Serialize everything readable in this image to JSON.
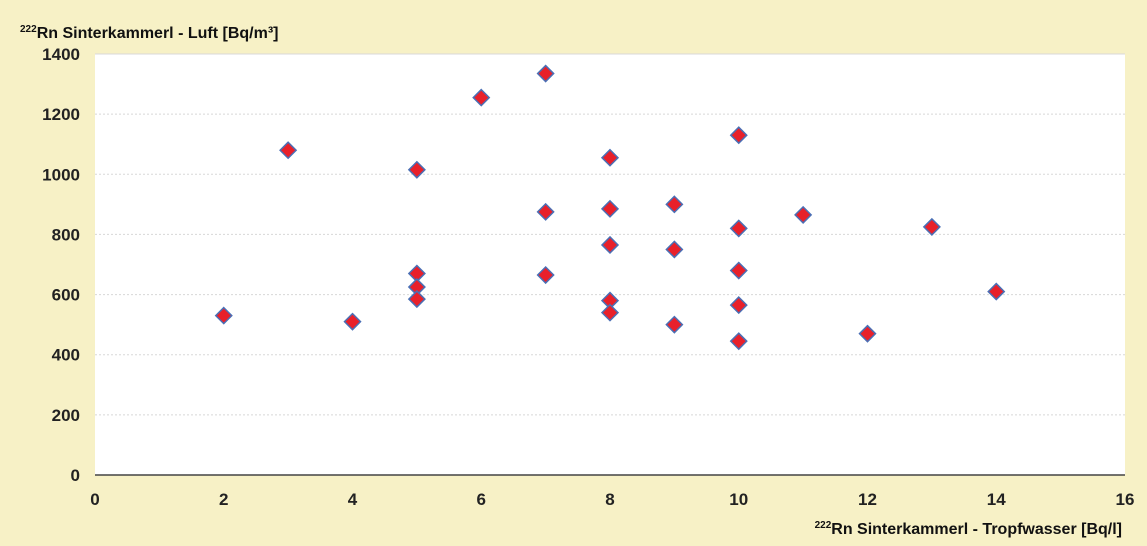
{
  "chart_data": {
    "type": "scatter",
    "ylabel_sup": "222",
    "ylabel": "Rn Sinterkammerl - Luft  [Bq/m³]",
    "xlabel_sup": "222",
    "xlabel": "Rn Sinterkammerl - Tropfwasser  [Bq/l]",
    "xlim": [
      0,
      16
    ],
    "ylim": [
      0,
      1400
    ],
    "x_ticks": [
      "0",
      "2",
      "4",
      "6",
      "8",
      "10",
      "12",
      "14",
      "16"
    ],
    "y_ticks": [
      "0",
      "200",
      "400",
      "600",
      "800",
      "1000",
      "1200",
      "1400"
    ],
    "grid": "horizontal",
    "marker": "diamond",
    "marker_color": "#e8202a",
    "marker_edge_color": "#4a6fb5",
    "background_color": "#f7f1c6",
    "plot_background_color": "#ffffff",
    "points": [
      {
        "x": 2,
        "y": 530
      },
      {
        "x": 3,
        "y": 1080
      },
      {
        "x": 4,
        "y": 510
      },
      {
        "x": 5,
        "y": 1015
      },
      {
        "x": 5,
        "y": 670
      },
      {
        "x": 5,
        "y": 625
      },
      {
        "x": 5,
        "y": 585
      },
      {
        "x": 6,
        "y": 1255
      },
      {
        "x": 7,
        "y": 1335
      },
      {
        "x": 7,
        "y": 875
      },
      {
        "x": 7,
        "y": 665
      },
      {
        "x": 8,
        "y": 1055
      },
      {
        "x": 8,
        "y": 885
      },
      {
        "x": 8,
        "y": 765
      },
      {
        "x": 8,
        "y": 580
      },
      {
        "x": 8,
        "y": 540
      },
      {
        "x": 9,
        "y": 900
      },
      {
        "x": 9,
        "y": 750
      },
      {
        "x": 9,
        "y": 500
      },
      {
        "x": 10,
        "y": 1130
      },
      {
        "x": 10,
        "y": 820
      },
      {
        "x": 10,
        "y": 680
      },
      {
        "x": 10,
        "y": 565
      },
      {
        "x": 10,
        "y": 445
      },
      {
        "x": 11,
        "y": 865
      },
      {
        "x": 12,
        "y": 470
      },
      {
        "x": 13,
        "y": 825
      },
      {
        "x": 14,
        "y": 610
      }
    ]
  }
}
